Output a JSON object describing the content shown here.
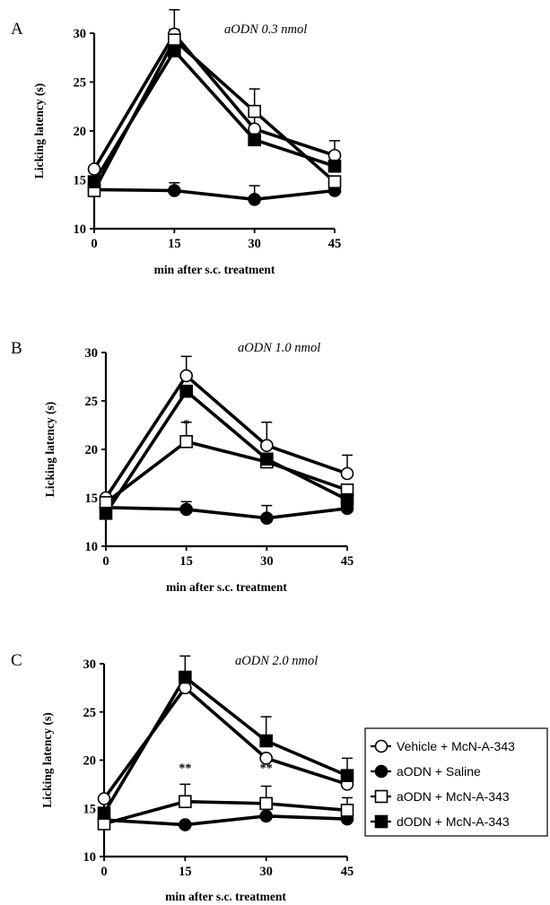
{
  "legend": [
    {
      "name": "Vehicle + McN-A-343",
      "marker": "circle-open"
    },
    {
      "name": "aODN + Saline",
      "marker": "circle-filled"
    },
    {
      "name": "aODN + McN-A-343",
      "marker": "square-open"
    },
    {
      "name": "dODN + McN-A-343",
      "marker": "square-filled"
    }
  ],
  "chart_data": [
    {
      "type": "line",
      "panel": "A",
      "title": "aODN 0.3 nmol",
      "xlabel": "min after s.c. treatment",
      "ylabel": "Licking latency (s)",
      "x": [
        0,
        15,
        30,
        45
      ],
      "ylim": [
        10,
        30
      ],
      "yticks": [
        10,
        15,
        20,
        25,
        30
      ],
      "series": [
        {
          "name": "Vehicle + McN-A-343",
          "marker": "circle-open",
          "values": [
            16.1,
            29.9,
            20.2,
            17.5
          ],
          "err": [
            0,
            2.5,
            1.5,
            1.5
          ]
        },
        {
          "name": "aODN + Saline",
          "marker": "circle-filled",
          "values": [
            14.0,
            13.9,
            13.0,
            13.9
          ],
          "err": [
            0,
            0.8,
            1.4,
            0
          ]
        },
        {
          "name": "aODN + McN-A-343",
          "marker": "square-open",
          "values": [
            13.9,
            29.3,
            22.0,
            14.8
          ],
          "err": [
            0,
            0,
            2.3,
            0
          ]
        },
        {
          "name": "dODN + McN-A-343",
          "marker": "square-filled",
          "values": [
            14.8,
            28.2,
            19.1,
            16.4
          ],
          "err": [
            0,
            2.2,
            0,
            1.5
          ]
        }
      ],
      "annotations": []
    },
    {
      "type": "line",
      "panel": "B",
      "title": "aODN 1.0 nmol",
      "xlabel": "min after s.c. treatment",
      "ylabel": "Licking latency (s)",
      "x": [
        0,
        15,
        30,
        45
      ],
      "ylim": [
        10,
        30
      ],
      "yticks": [
        10,
        15,
        20,
        25,
        30
      ],
      "series": [
        {
          "name": "Vehicle + McN-A-343",
          "marker": "circle-open",
          "values": [
            15.0,
            27.6,
            20.4,
            17.5
          ],
          "err": [
            0,
            2.0,
            2.4,
            1.9
          ]
        },
        {
          "name": "aODN + Saline",
          "marker": "circle-filled",
          "values": [
            14.0,
            13.8,
            12.9,
            13.9
          ],
          "err": [
            0,
            0.8,
            1.3,
            0
          ]
        },
        {
          "name": "aODN + McN-A-343",
          "marker": "square-open",
          "values": [
            14.5,
            20.8,
            18.7,
            15.8
          ],
          "err": [
            0,
            2.0,
            0,
            0
          ]
        },
        {
          "name": "dODN + McN-A-343",
          "marker": "square-filled",
          "values": [
            13.4,
            26.0,
            19.0,
            14.8
          ],
          "err": [
            0,
            0,
            0,
            0
          ]
        }
      ],
      "annotations": [
        {
          "x": 15,
          "text": "*"
        }
      ]
    },
    {
      "type": "line",
      "panel": "C",
      "title": "aODN 2.0 nmol",
      "xlabel": "min after s.c. treatment",
      "ylabel": "Licking latency (s)",
      "x": [
        0,
        15,
        30,
        45
      ],
      "ylim": [
        10,
        30
      ],
      "yticks": [
        10,
        15,
        20,
        25,
        30
      ],
      "series": [
        {
          "name": "Vehicle + McN-A-343",
          "marker": "circle-open",
          "values": [
            16.0,
            27.5,
            20.2,
            17.5
          ],
          "err": [
            0,
            0,
            0,
            1.5
          ]
        },
        {
          "name": "aODN + Saline",
          "marker": "circle-filled",
          "values": [
            13.8,
            13.3,
            14.2,
            13.9
          ],
          "err": [
            0,
            0,
            0,
            0
          ]
        },
        {
          "name": "aODN + McN-A-343",
          "marker": "square-open",
          "values": [
            13.4,
            15.7,
            15.5,
            14.8
          ],
          "err": [
            0,
            1.8,
            1.8,
            1.3
          ]
        },
        {
          "name": "dODN + McN-A-343",
          "marker": "square-filled",
          "values": [
            14.5,
            28.6,
            22.0,
            18.4
          ],
          "err": [
            0,
            2.2,
            2.5,
            1.8
          ]
        }
      ],
      "annotations": [
        {
          "x": 15,
          "text": "**"
        },
        {
          "x": 30,
          "text": "**"
        }
      ]
    }
  ]
}
